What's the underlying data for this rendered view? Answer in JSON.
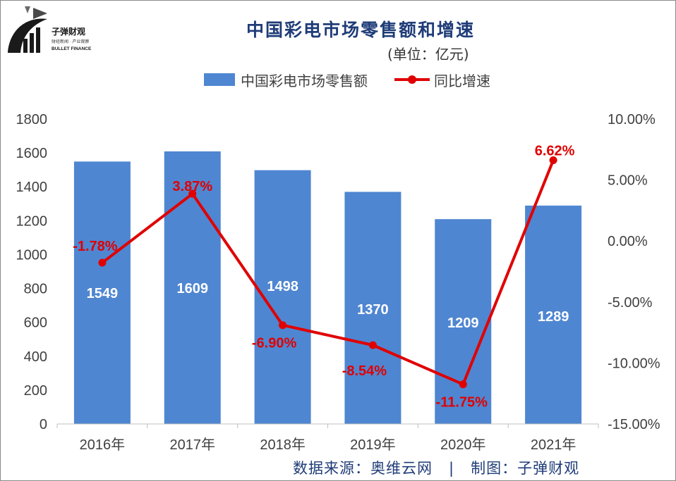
{
  "logo": {
    "name_text": "子弹财观",
    "tagline": "财经新闻 · 产业观察",
    "english": "BULLET FINANCE"
  },
  "title": "中国彩电市场零售额和增速",
  "unit_label": "(单位：亿元)",
  "legend": {
    "bar_label": "中国彩电市场零售额",
    "line_label": "同比增速"
  },
  "source_text": "数据来源：奥维云网   |   制图：子弹财观",
  "colors": {
    "bar": "#4f86d1",
    "line": "#e00000",
    "bar_value_text": "#ffffff",
    "line_label_text": "#e00000",
    "axis_text": "#404040",
    "title": "#1f3c78"
  },
  "chart_data": {
    "type": "bar",
    "title": "中国彩电市场零售额和增速",
    "categories": [
      "2016年",
      "2017年",
      "2018年",
      "2019年",
      "2020年",
      "2021年"
    ],
    "series": [
      {
        "name": "中国彩电市场零售额",
        "type": "bar",
        "axis": "left",
        "values": [
          1549,
          1609,
          1498,
          1370,
          1209,
          1289
        ],
        "labels": [
          "1549",
          "1609",
          "1498",
          "1370",
          "1209",
          "1289"
        ]
      },
      {
        "name": "同比增速",
        "type": "line",
        "axis": "right",
        "values": [
          -1.78,
          3.87,
          -6.9,
          -8.54,
          -11.75,
          6.62
        ],
        "labels": [
          "-1.78%",
          "3.87%",
          "-6.90%",
          "-8.54%",
          "-11.75%",
          "6.62%"
        ]
      }
    ],
    "y_left": {
      "lim": [
        0,
        1800
      ],
      "ticks": [
        0,
        200,
        400,
        600,
        800,
        1000,
        1200,
        1400,
        1600,
        1800
      ]
    },
    "y_right": {
      "lim": [
        -15,
        10
      ],
      "ticks": [
        -15,
        -10,
        -5,
        0,
        5,
        10
      ],
      "tick_labels": [
        "-15.00%",
        "-10.00%",
        "-5.00%",
        "0.00%",
        "5.00%",
        "10.00%"
      ]
    },
    "grid": false,
    "legend_position": "top"
  }
}
